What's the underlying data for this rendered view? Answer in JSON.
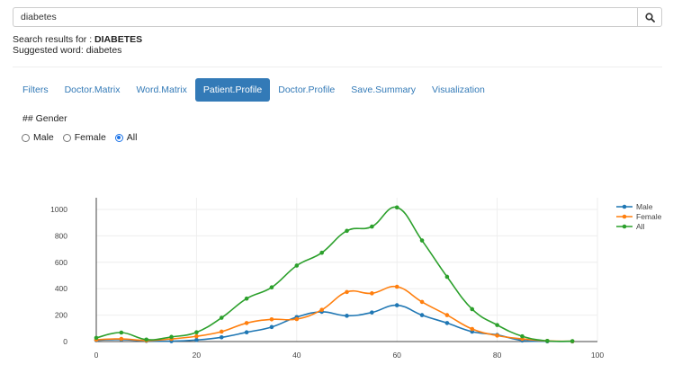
{
  "search": {
    "value": "diabetes"
  },
  "results": {
    "prefix": "Search results for : ",
    "term": "DIABETES"
  },
  "suggestion": {
    "text": "Suggested word: diabetes"
  },
  "tabs": [
    {
      "label": "Filters",
      "active": false
    },
    {
      "label": "Doctor.Matrix",
      "active": false
    },
    {
      "label": "Word.Matrix",
      "active": false
    },
    {
      "label": "Patient.Profile",
      "active": true
    },
    {
      "label": "Doctor.Profile",
      "active": false
    },
    {
      "label": "Save.Summary",
      "active": false
    },
    {
      "label": "Visualization",
      "active": false
    }
  ],
  "section": {
    "heading": "## Gender"
  },
  "gender_radio": {
    "options": [
      "Male",
      "Female",
      "All"
    ],
    "selected": "All"
  },
  "icons": {
    "search_button": "search-icon"
  },
  "colors": {
    "accent": "#337ab7",
    "male": "#1f77b4",
    "female": "#ff7f0e",
    "all": "#2ca02c"
  },
  "chart_data": {
    "type": "line",
    "x": [
      0,
      5,
      10,
      15,
      20,
      25,
      30,
      35,
      40,
      45,
      50,
      55,
      60,
      65,
      70,
      75,
      80,
      85,
      90,
      95
    ],
    "series": [
      {
        "name": "Male",
        "values": [
          10,
          15,
          5,
          3,
          12,
          32,
          70,
          110,
          185,
          225,
          195,
          220,
          275,
          200,
          140,
          75,
          50,
          8,
          2,
          1
        ]
      },
      {
        "name": "Female",
        "values": [
          14,
          20,
          8,
          20,
          40,
          75,
          140,
          168,
          170,
          240,
          375,
          365,
          415,
          300,
          200,
          95,
          45,
          20,
          5,
          2
        ]
      },
      {
        "name": "All",
        "values": [
          28,
          68,
          15,
          35,
          70,
          180,
          325,
          410,
          575,
          672,
          838,
          870,
          1015,
          765,
          490,
          245,
          125,
          40,
          5,
          3
        ]
      }
    ],
    "xticks": [
      0,
      20,
      40,
      60,
      80,
      100
    ],
    "yticks": [
      0,
      200,
      400,
      600,
      800,
      1000
    ],
    "xlim": [
      0,
      100
    ],
    "ylim": [
      0,
      1000
    ],
    "grid": true,
    "legend": "top-right",
    "title": "",
    "xlabel": "",
    "ylabel": ""
  }
}
